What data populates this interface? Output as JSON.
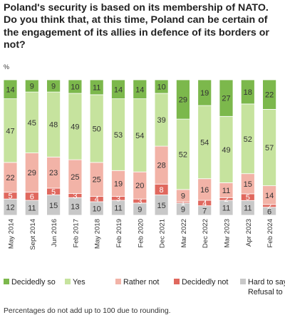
{
  "chart_data": {
    "type": "bar",
    "stacked": true,
    "percent_stacked": true,
    "title": "Poland's security is based on its membership of NATO. Do you think that, at this time, Poland can be certain of the engagement of its allies in defence of its borders or not?",
    "unit_label": "%",
    "categories": [
      "May 2014",
      "Sept 2014",
      "Jun 2016",
      "Feb 2017",
      "May 2018",
      "Feb 2019",
      "Feb 2020",
      "Dec 2021",
      "Mar 2022",
      "Dec 2022",
      "Mar 2023",
      "Apr 2023",
      "Feb 2024"
    ],
    "series": [
      {
        "name": "Hard to say / Refusal to answer",
        "color": "#c8c8c8",
        "values": [
          12,
          11,
          15,
          13,
          10,
          11,
          9,
          15,
          9,
          7,
          11,
          11,
          6
        ]
      },
      {
        "name": "Decidedly not",
        "color": "#e0685e",
        "values": [
          5,
          6,
          5,
          3,
          4,
          3,
          3,
          8,
          1,
          4,
          2,
          5,
          2
        ]
      },
      {
        "name": "Rather not",
        "color": "#f2b3a7",
        "values": [
          22,
          29,
          23,
          25,
          25,
          19,
          20,
          28,
          9,
          16,
          11,
          15,
          14
        ]
      },
      {
        "name": "Yes",
        "color": "#c6e39e",
        "values": [
          47,
          45,
          48,
          49,
          50,
          53,
          54,
          39,
          52,
          54,
          49,
          52,
          57
        ]
      },
      {
        "name": "Decidedly so",
        "color": "#7cb84c",
        "values": [
          14,
          9,
          9,
          10,
          11,
          14,
          14,
          10,
          29,
          19,
          27,
          18,
          22
        ]
      }
    ],
    "legend_position": "bottom",
    "legend": [
      {
        "label": "Decidedly so",
        "color": "#7cb84c"
      },
      {
        "label": "Yes",
        "color": "#c6e39e"
      },
      {
        "label": "Rather not",
        "color": "#f2b3a7"
      },
      {
        "label": "Decidedly not",
        "color": "#e0685e"
      },
      {
        "label": "Hard to say /\nRefusal to answer",
        "color": "#c8c8c8"
      }
    ],
    "grid": false,
    "note": "Percentages do not add up to 100 due to rounding."
  }
}
